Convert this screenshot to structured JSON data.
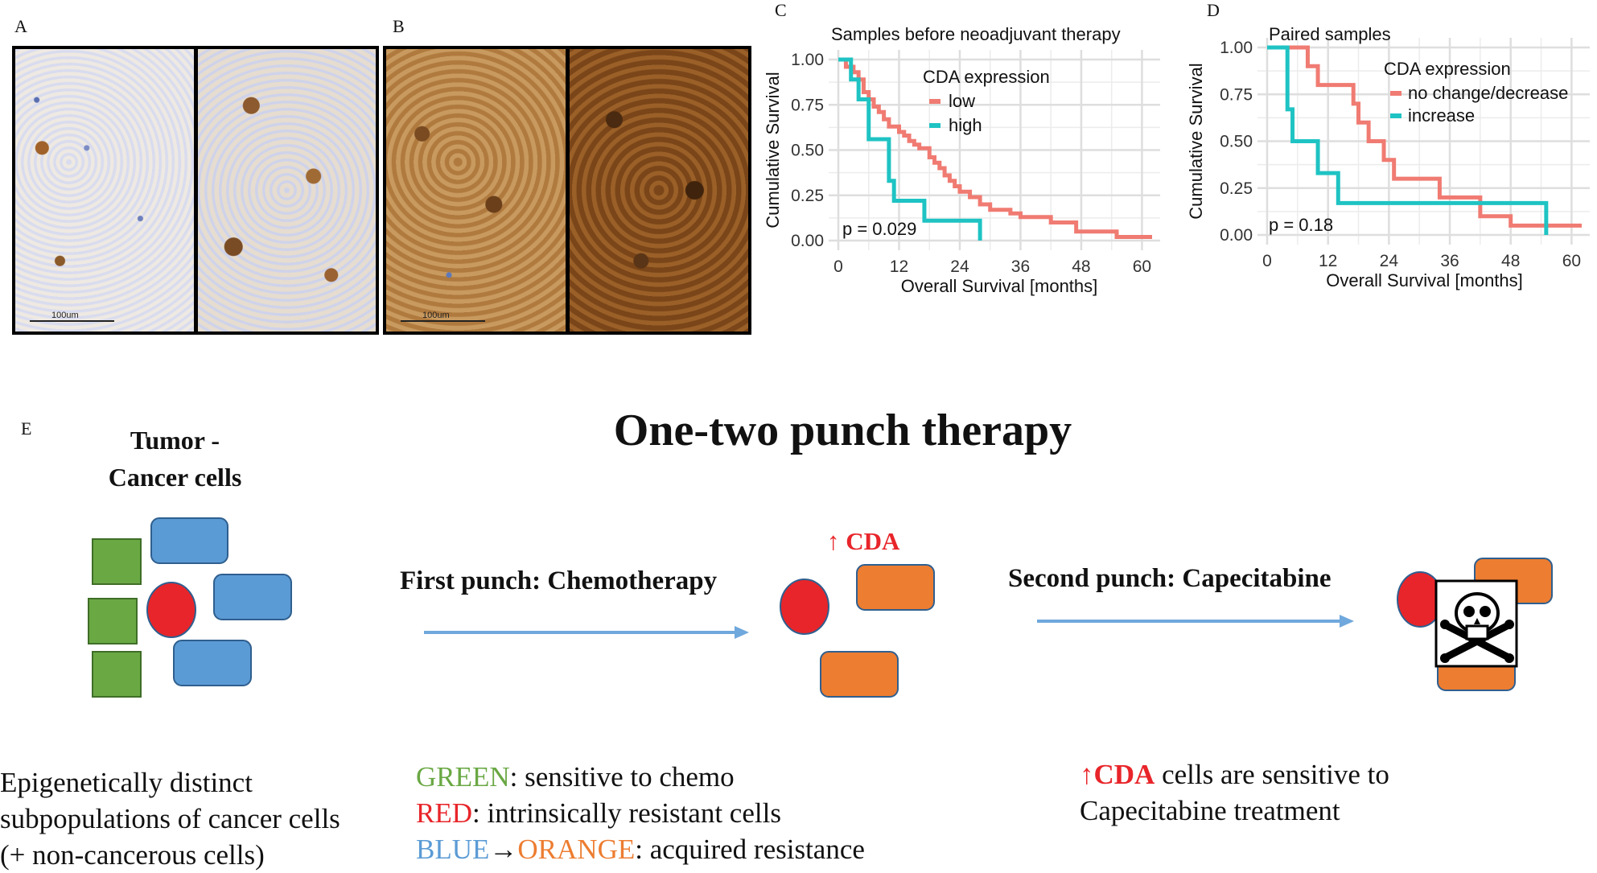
{
  "panels": {
    "a": "A",
    "b": "B",
    "c": "C",
    "d": "D",
    "e": "E"
  },
  "ihc": {
    "scale_a": "100um",
    "scale_b": "100um"
  },
  "colors": {
    "low": "#f07b72",
    "high": "#1fc3c3",
    "green": "#6aa844",
    "blue": "#5b9bd5",
    "orange": "#ed7d31",
    "red": "#e8252a",
    "arrow": "#6fa8dc"
  },
  "chart_data": [
    {
      "type": "line",
      "subtype": "kaplan-meier",
      "title": "Samples before neoadjuvant therapy",
      "xlabel": "Overall Survival [months]",
      "ylabel": "Cumulative Survival",
      "xlim": [
        0,
        62
      ],
      "ylim": [
        0,
        1
      ],
      "xticks": [
        "0",
        "12",
        "24",
        "36",
        "48",
        "60"
      ],
      "yticks": [
        "0.00",
        "0.25",
        "0.50",
        "0.75",
        "1.00"
      ],
      "legend_title": "CDA expression",
      "pvalue": "p = 0.029",
      "series": [
        {
          "name": "low",
          "color": "#f07b72",
          "x": [
            0,
            1.5,
            3,
            4,
            5,
            6,
            7,
            8,
            9,
            10,
            12,
            13,
            14,
            15,
            16,
            18,
            19,
            20,
            21,
            22,
            23,
            24,
            26,
            28,
            30,
            34,
            36,
            42,
            47,
            55,
            62
          ],
          "y": [
            1.0,
            0.96,
            0.93,
            0.89,
            0.82,
            0.78,
            0.74,
            0.71,
            0.67,
            0.63,
            0.6,
            0.58,
            0.55,
            0.53,
            0.51,
            0.46,
            0.43,
            0.4,
            0.36,
            0.33,
            0.3,
            0.27,
            0.24,
            0.2,
            0.17,
            0.15,
            0.13,
            0.1,
            0.05,
            0.02,
            0.02
          ]
        },
        {
          "name": "high",
          "color": "#1fc3c3",
          "x": [
            0,
            2.5,
            4,
            6,
            10,
            11,
            17,
            28
          ],
          "y": [
            1.0,
            0.89,
            0.78,
            0.56,
            0.33,
            0.22,
            0.11,
            0.0
          ]
        }
      ]
    },
    {
      "type": "line",
      "subtype": "kaplan-meier",
      "title": "Paired samples",
      "xlabel": "Overall Survival [months]",
      "ylabel": "Cumulative Survival",
      "xlim": [
        0,
        62
      ],
      "ylim": [
        0,
        1
      ],
      "xticks": [
        "0",
        "12",
        "24",
        "36",
        "48",
        "60"
      ],
      "yticks": [
        "0.00",
        "0.25",
        "0.50",
        "0.75",
        "1.00"
      ],
      "legend_title": "CDA expression",
      "pvalue": "p = 0.18",
      "series": [
        {
          "name": "no change/decrease",
          "color": "#f07b72",
          "x": [
            0,
            8,
            10,
            17,
            18,
            20,
            23,
            25,
            34,
            42,
            48,
            62
          ],
          "y": [
            1.0,
            0.9,
            0.8,
            0.7,
            0.6,
            0.5,
            0.4,
            0.3,
            0.2,
            0.1,
            0.05,
            0.05
          ]
        },
        {
          "name": "increase",
          "color": "#1fc3c3",
          "x": [
            0,
            4,
            5,
            10,
            14,
            55
          ],
          "y": [
            1.0,
            0.67,
            0.5,
            0.33,
            0.17,
            0.0
          ]
        }
      ]
    }
  ],
  "diagram": {
    "title": "One-two punch therapy",
    "tumor_label_1": "Tumor -",
    "tumor_label_2": "Cancer cells",
    "first_punch": "First punch: Chemotherapy",
    "second_punch": "Second punch: Capecitabine",
    "cda_arrow": "↑",
    "cda_label": "CDA",
    "desc_left_1": "Epigenetically distinct",
    "desc_left_2": "subpopulations of cancer cells",
    "desc_left_3": "(+ non-cancerous cells)",
    "green_word": "GREEN",
    "green_rest": ": sensitive to chemo",
    "red_word": "RED",
    "red_rest": ": intrinsically resistant cells",
    "blue_word": "BLUE",
    "arrow_glyph": "→",
    "orange_word": "ORANGE",
    "orange_rest": ": acquired resistance",
    "right_arrow": "↑",
    "right_cda": "CDA",
    "right_rest_1": " cells are sensitive to",
    "right_rest_2": "Capecitabine treatment"
  }
}
